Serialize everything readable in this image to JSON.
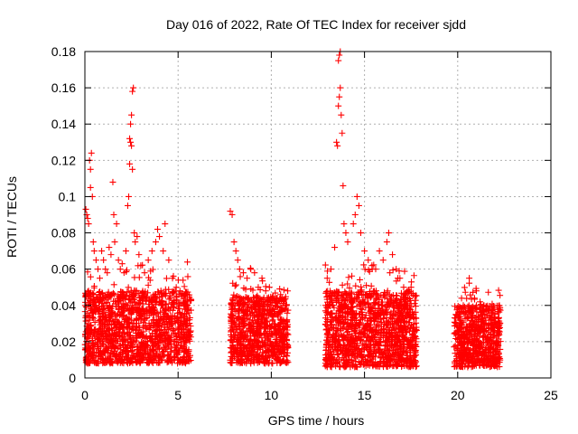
{
  "chart_data": {
    "type": "scatter",
    "title": "Day 016 of 2022, Rate Of TEC Index for receiver sjdd",
    "xlabel": "GPS time / hours",
    "ylabel": "ROTI / TECUs",
    "xlim": [
      0,
      25
    ],
    "ylim": [
      0,
      0.18
    ],
    "xticks": [
      0,
      5,
      10,
      15,
      20,
      25
    ],
    "yticks": [
      0,
      0.02,
      0.04,
      0.06,
      0.08,
      0.1,
      0.12,
      0.14,
      0.16,
      0.18
    ],
    "ytick_labels": [
      "0",
      "0.02",
      "0.04",
      "0.06",
      "0.08",
      "0.1",
      "0.12",
      "0.14",
      "0.16",
      "0.18"
    ],
    "grid": true,
    "marker": "plus",
    "series_color": "#ff0000",
    "points": [
      [
        0.05,
        0.093
      ],
      [
        0.1,
        0.09
      ],
      [
        0.15,
        0.088
      ],
      [
        0.2,
        0.085
      ],
      [
        0.25,
        0.12
      ],
      [
        0.3,
        0.115
      ],
      [
        0.35,
        0.124
      ],
      [
        0.3,
        0.105
      ],
      [
        0.4,
        0.1
      ],
      [
        0.45,
        0.075
      ],
      [
        0.5,
        0.07
      ],
      [
        0.6,
        0.065
      ],
      [
        0.7,
        0.06
      ],
      [
        0.8,
        0.055
      ],
      [
        0.9,
        0.07
      ],
      [
        1.0,
        0.065
      ],
      [
        1.1,
        0.06
      ],
      [
        1.2,
        0.058
      ],
      [
        1.3,
        0.072
      ],
      [
        1.4,
        0.068
      ],
      [
        1.5,
        0.108
      ],
      [
        1.55,
        0.09
      ],
      [
        1.6,
        0.075
      ],
      [
        1.7,
        0.085
      ],
      [
        1.8,
        0.065
      ],
      [
        1.9,
        0.06
      ],
      [
        2.0,
        0.063
      ],
      [
        2.1,
        0.058
      ],
      [
        2.2,
        0.07
      ],
      [
        2.3,
        0.095
      ],
      [
        2.35,
        0.1
      ],
      [
        2.4,
        0.132
      ],
      [
        2.45,
        0.13
      ],
      [
        2.5,
        0.128
      ],
      [
        2.55,
        0.158
      ],
      [
        2.6,
        0.16
      ],
      [
        2.5,
        0.145
      ],
      [
        2.45,
        0.14
      ],
      [
        2.4,
        0.118
      ],
      [
        2.55,
        0.115
      ],
      [
        2.65,
        0.08
      ],
      [
        2.7,
        0.075
      ],
      [
        2.8,
        0.078
      ],
      [
        2.9,
        0.068
      ],
      [
        3.0,
        0.062
      ],
      [
        3.2,
        0.058
      ],
      [
        3.4,
        0.065
      ],
      [
        3.6,
        0.07
      ],
      [
        3.8,
        0.075
      ],
      [
        3.9,
        0.082
      ],
      [
        4.0,
        0.078
      ],
      [
        4.2,
        0.07
      ],
      [
        4.3,
        0.085
      ],
      [
        4.5,
        0.065
      ],
      [
        4.7,
        0.055
      ],
      [
        4.9,
        0.05
      ],
      [
        5.1,
        0.048
      ],
      [
        5.3,
        0.045
      ],
      [
        5.5,
        0.046
      ],
      [
        7.8,
        0.092
      ],
      [
        7.9,
        0.09
      ],
      [
        8.0,
        0.075
      ],
      [
        8.1,
        0.07
      ],
      [
        8.2,
        0.065
      ],
      [
        8.3,
        0.06
      ],
      [
        8.5,
        0.058
      ],
      [
        8.7,
        0.055
      ],
      [
        8.9,
        0.06
      ],
      [
        9.1,
        0.058
      ],
      [
        9.3,
        0.05
      ],
      [
        9.5,
        0.055
      ],
      [
        9.7,
        0.048
      ],
      [
        9.9,
        0.05
      ],
      [
        10.1,
        0.045
      ],
      [
        10.3,
        0.044
      ],
      [
        10.5,
        0.046
      ],
      [
        10.7,
        0.043
      ],
      [
        13.0,
        0.055
      ],
      [
        13.2,
        0.06
      ],
      [
        13.4,
        0.072
      ],
      [
        13.5,
        0.13
      ],
      [
        13.55,
        0.128
      ],
      [
        13.6,
        0.15
      ],
      [
        13.65,
        0.155
      ],
      [
        13.7,
        0.16
      ],
      [
        13.6,
        0.175
      ],
      [
        13.65,
        0.178
      ],
      [
        13.7,
        0.18
      ],
      [
        13.75,
        0.145
      ],
      [
        13.8,
        0.135
      ],
      [
        13.85,
        0.106
      ],
      [
        13.9,
        0.085
      ],
      [
        14.0,
        0.08
      ],
      [
        14.1,
        0.075
      ],
      [
        14.4,
        0.085
      ],
      [
        14.5,
        0.09
      ],
      [
        14.6,
        0.1
      ],
      [
        14.7,
        0.095
      ],
      [
        14.8,
        0.08
      ],
      [
        15.0,
        0.07
      ],
      [
        15.2,
        0.065
      ],
      [
        15.4,
        0.062
      ],
      [
        15.6,
        0.06
      ],
      [
        15.8,
        0.07
      ],
      [
        16.0,
        0.065
      ],
      [
        16.2,
        0.075
      ],
      [
        16.3,
        0.08
      ],
      [
        16.5,
        0.068
      ],
      [
        16.7,
        0.06
      ],
      [
        16.9,
        0.055
      ],
      [
        17.1,
        0.05
      ],
      [
        17.3,
        0.048
      ],
      [
        17.5,
        0.05
      ],
      [
        17.7,
        0.045
      ],
      [
        19.9,
        0.035
      ],
      [
        20.1,
        0.038
      ],
      [
        20.3,
        0.04
      ],
      [
        20.5,
        0.035
      ],
      [
        20.7,
        0.038
      ],
      [
        20.9,
        0.044
      ],
      [
        21.0,
        0.048
      ],
      [
        21.2,
        0.042
      ],
      [
        21.4,
        0.04
      ],
      [
        21.6,
        0.038
      ],
      [
        21.8,
        0.036
      ],
      [
        22.0,
        0.035
      ],
      [
        22.2,
        0.033
      ]
    ],
    "dense_segments": [
      {
        "x": [
          0.0,
          5.7
        ],
        "y_base": [
          0.008,
          0.048
        ],
        "n": 1400
      },
      {
        "x": [
          7.8,
          10.9
        ],
        "y_base": [
          0.008,
          0.045
        ],
        "n": 800
      },
      {
        "x": [
          12.9,
          17.8
        ],
        "y_base": [
          0.006,
          0.048
        ],
        "n": 1300
      },
      {
        "x": [
          19.8,
          22.3
        ],
        "y_base": [
          0.006,
          0.04
        ],
        "n": 650
      }
    ]
  }
}
